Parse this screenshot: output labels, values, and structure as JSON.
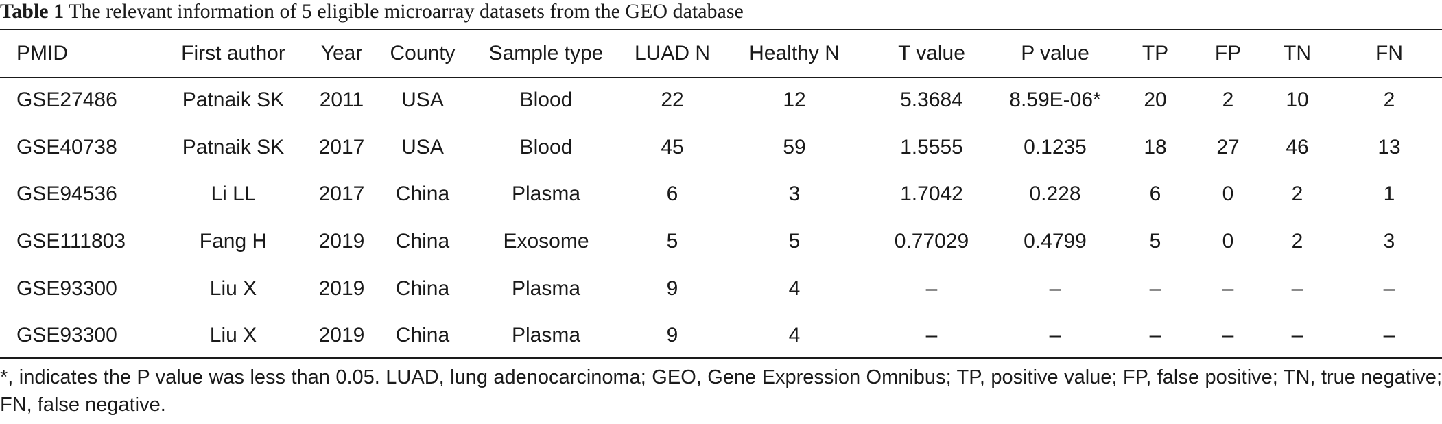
{
  "caption": {
    "label": "Table 1",
    "text": "The relevant information of 5 eligible microarray datasets from the GEO database"
  },
  "columns": [
    "PMID",
    "First author",
    "Year",
    "County",
    "Sample type",
    "LUAD N",
    "Healthy N",
    "T value",
    "P value",
    "TP",
    "FP",
    "TN",
    "FN"
  ],
  "rows": [
    [
      "GSE27486",
      "Patnaik SK",
      "2011",
      "USA",
      "Blood",
      "22",
      "12",
      "5.3684",
      "8.59E-06*",
      "20",
      "2",
      "10",
      "2"
    ],
    [
      "GSE40738",
      "Patnaik SK",
      "2017",
      "USA",
      "Blood",
      "45",
      "59",
      "1.5555",
      "0.1235",
      "18",
      "27",
      "46",
      "13"
    ],
    [
      "GSE94536",
      "Li LL",
      "2017",
      "China",
      "Plasma",
      "6",
      "3",
      "1.7042",
      "0.228",
      "6",
      "0",
      "2",
      "1"
    ],
    [
      "GSE111803",
      "Fang H",
      "2019",
      "China",
      "Exosome",
      "5",
      "5",
      "0.77029",
      "0.4799",
      "5",
      "0",
      "2",
      "3"
    ],
    [
      "GSE93300",
      "Liu X",
      "2019",
      "China",
      "Plasma",
      "9",
      "4",
      "–",
      "–",
      "–",
      "–",
      "–",
      "–"
    ],
    [
      "GSE93300",
      "Liu X",
      "2019",
      "China",
      "Plasma",
      "9",
      "4",
      "–",
      "–",
      "–",
      "–",
      "–",
      "–"
    ]
  ],
  "footnote": "*, indicates the P value was less than 0.05. LUAD, lung adenocarcinoma; GEO, Gene Expression Omnibus; TP, positive value; FP, false positive; TN, true negative; FN, false negative."
}
